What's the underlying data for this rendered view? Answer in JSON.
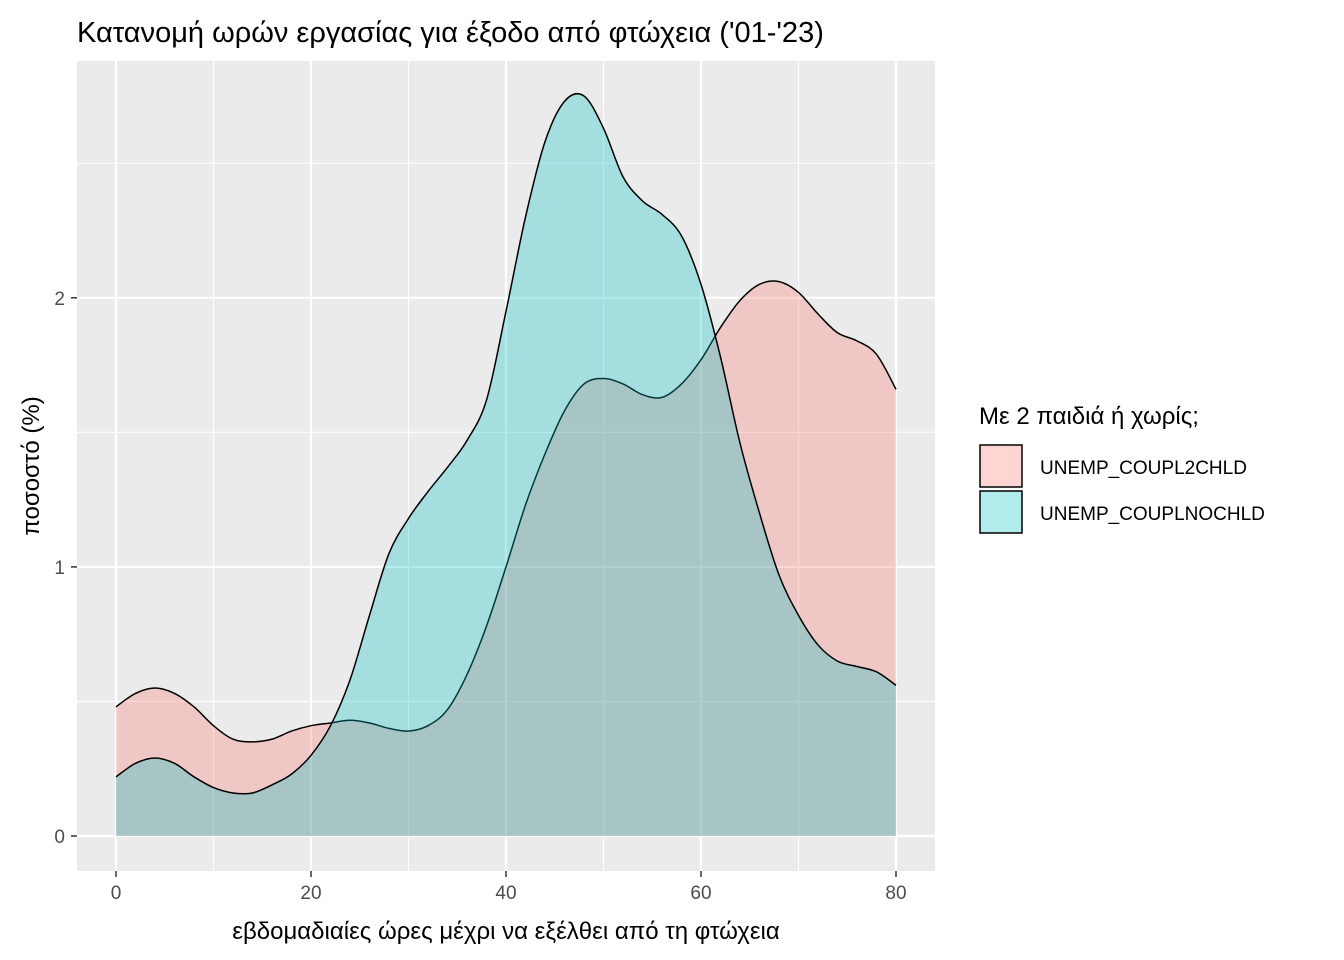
{
  "chart_data": {
    "type": "area",
    "title": "Κατανομή ωρών εργασίας για έξοδο από φτώχεια ('01-'23)",
    "xlabel": "εβδομαδιαίες ώρες μέχρι να εξέλθει από τη φτώχεια",
    "ylabel": "ποσοστό (%)",
    "xlim": [
      -4,
      84
    ],
    "ylim": [
      -0.13,
      2.88
    ],
    "x_ticks": [
      0,
      20,
      40,
      60,
      80
    ],
    "y_ticks": [
      0,
      1,
      2
    ],
    "x_tick_labels": [
      "0",
      "20",
      "40",
      "60",
      "80"
    ],
    "y_tick_labels": [
      "0",
      "1",
      "2"
    ],
    "grid": true,
    "legend": {
      "title": "Με 2 παιδιά ή χωρίς;",
      "position": "right"
    },
    "series": [
      {
        "name": "UNEMP_COUPL2CHLD",
        "color": "#F8766D",
        "x": [
          0,
          2,
          4,
          6,
          8,
          10,
          12,
          14,
          16,
          18,
          20,
          22,
          24,
          26,
          28,
          30,
          32,
          34,
          36,
          38,
          40,
          42,
          44,
          46,
          48,
          50,
          52,
          54,
          56,
          58,
          60,
          62,
          64,
          66,
          68,
          70,
          72,
          74,
          76,
          78,
          80
        ],
        "values": [
          0.48,
          0.53,
          0.55,
          0.53,
          0.48,
          0.41,
          0.36,
          0.35,
          0.36,
          0.39,
          0.41,
          0.42,
          0.43,
          0.42,
          0.4,
          0.39,
          0.41,
          0.47,
          0.6,
          0.78,
          1.0,
          1.23,
          1.42,
          1.58,
          1.68,
          1.7,
          1.68,
          1.64,
          1.63,
          1.68,
          1.77,
          1.89,
          1.99,
          2.05,
          2.06,
          2.02,
          1.94,
          1.87,
          1.84,
          1.79,
          1.66
        ]
      },
      {
        "name": "UNEMP_COUPLNOCHLD",
        "color": "#00BFC4",
        "x": [
          0,
          2,
          4,
          6,
          8,
          10,
          12,
          14,
          16,
          18,
          20,
          22,
          24,
          26,
          28,
          30,
          32,
          34,
          36,
          38,
          40,
          42,
          44,
          46,
          48,
          50,
          52,
          54,
          56,
          58,
          60,
          62,
          64,
          66,
          68,
          70,
          72,
          74,
          76,
          78,
          80
        ],
        "values": [
          0.22,
          0.27,
          0.29,
          0.27,
          0.22,
          0.18,
          0.16,
          0.16,
          0.19,
          0.23,
          0.3,
          0.41,
          0.58,
          0.82,
          1.05,
          1.18,
          1.28,
          1.37,
          1.47,
          1.62,
          1.95,
          2.3,
          2.58,
          2.73,
          2.75,
          2.63,
          2.45,
          2.36,
          2.31,
          2.23,
          2.05,
          1.78,
          1.46,
          1.2,
          0.97,
          0.82,
          0.71,
          0.65,
          0.63,
          0.61,
          0.56
        ]
      }
    ]
  }
}
